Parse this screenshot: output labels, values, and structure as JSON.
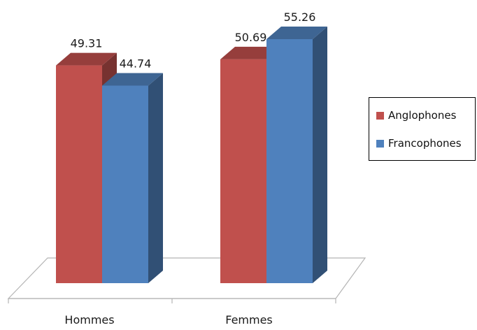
{
  "chart_data": {
    "type": "bar",
    "categories": [
      "Hommes",
      "Femmes"
    ],
    "series": [
      {
        "name": "Anglophones",
        "values": [
          49.31,
          50.69
        ],
        "color": "#c0504d"
      },
      {
        "name": "Francophones",
        "values": [
          44.74,
          55.26
        ],
        "color": "#4f81bd"
      }
    ],
    "data_labels": [
      "49.31",
      "44.74",
      "50.69",
      "55.26"
    ],
    "ylim": [
      0,
      55.26
    ],
    "grid": false,
    "legend_position": "right",
    "style": "3d-clustered-column"
  },
  "legend": {
    "items": [
      {
        "label": "Anglophones",
        "color": "#c0504d"
      },
      {
        "label": "Francophones",
        "color": "#4f81bd"
      }
    ]
  }
}
